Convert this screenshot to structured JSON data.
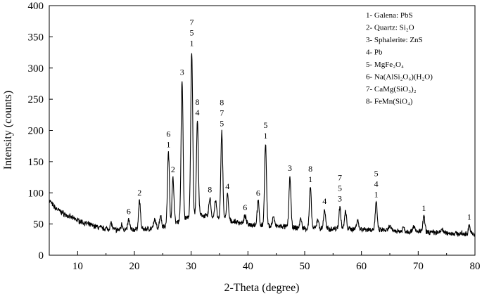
{
  "chart_data": {
    "type": "line",
    "xlabel": "2-Theta (degree)",
    "ylabel": "Intensity (counts)",
    "xlim": [
      5,
      80
    ],
    "ylim": [
      0,
      400
    ],
    "xticks": [
      10,
      20,
      30,
      40,
      50,
      60,
      70,
      80
    ],
    "yticks": [
      0,
      50,
      100,
      150,
      200,
      250,
      300,
      350,
      400
    ],
    "line_color": "#000000",
    "legend_position": "top-right",
    "legend": [
      "1- Galena: PbS",
      "2- Quartz: Si₂O",
      "3- Sphalerite: ZnS",
      "4- Pb",
      "5- MgFe₂O₄",
      "6- Na(AlSi₂O₆)(H₂O)",
      "7- CaMg(SiO₃)₂",
      "8- FeMn(SiO₄)"
    ],
    "baseline": [
      [
        5,
        88
      ],
      [
        6,
        76
      ],
      [
        7,
        70
      ],
      [
        8,
        64
      ],
      [
        10,
        56
      ],
      [
        12,
        49
      ],
      [
        14,
        44
      ],
      [
        16,
        41
      ],
      [
        18,
        40
      ],
      [
        20,
        41
      ],
      [
        22,
        42
      ],
      [
        24,
        44
      ],
      [
        26,
        48
      ],
      [
        28,
        55
      ],
      [
        30,
        63
      ],
      [
        32,
        64
      ],
      [
        34,
        60
      ],
      [
        36,
        57
      ],
      [
        38,
        53
      ],
      [
        40,
        50
      ],
      [
        42,
        48
      ],
      [
        44,
        47
      ],
      [
        46,
        46
      ],
      [
        48,
        44
      ],
      [
        50,
        43
      ],
      [
        52,
        43
      ],
      [
        54,
        42
      ],
      [
        56,
        43
      ],
      [
        58,
        42
      ],
      [
        60,
        42
      ],
      [
        62,
        41
      ],
      [
        64,
        40
      ],
      [
        66,
        39
      ],
      [
        68,
        38
      ],
      [
        70,
        38
      ],
      [
        72,
        37
      ],
      [
        74,
        36
      ],
      [
        76,
        35
      ],
      [
        78,
        34
      ],
      [
        80,
        33
      ]
    ],
    "peaks": [
      {
        "x": 15.9,
        "y": 52,
        "label": []
      },
      {
        "x": 17.8,
        "y": 50,
        "label": []
      },
      {
        "x": 19.0,
        "y": 57,
        "label": [
          "6"
        ]
      },
      {
        "x": 20.9,
        "y": 87,
        "label": [
          "2"
        ]
      },
      {
        "x": 23.6,
        "y": 57,
        "label": []
      },
      {
        "x": 24.6,
        "y": 64,
        "label": []
      },
      {
        "x": 26.0,
        "y": 164,
        "label": [
          "6",
          "1"
        ]
      },
      {
        "x": 26.8,
        "y": 124,
        "label": [
          "2"
        ]
      },
      {
        "x": 28.4,
        "y": 280,
        "label": [
          "3"
        ]
      },
      {
        "x": 30.1,
        "y": 326,
        "label": [
          "7",
          "5",
          "1"
        ]
      },
      {
        "x": 31.1,
        "y": 215,
        "label": [
          "8",
          "4"
        ]
      },
      {
        "x": 33.3,
        "y": 92,
        "label": [
          "8"
        ]
      },
      {
        "x": 34.3,
        "y": 88,
        "label": []
      },
      {
        "x": 35.4,
        "y": 198,
        "label": [
          "8",
          "7",
          "5"
        ]
      },
      {
        "x": 36.4,
        "y": 97,
        "label": [
          "4"
        ]
      },
      {
        "x": 39.5,
        "y": 63,
        "label": [
          "6"
        ]
      },
      {
        "x": 41.8,
        "y": 86,
        "label": [
          "6"
        ]
      },
      {
        "x": 43.1,
        "y": 178,
        "label": [
          "5",
          "1"
        ]
      },
      {
        "x": 44.5,
        "y": 62,
        "label": []
      },
      {
        "x": 47.4,
        "y": 126,
        "label": [
          "3"
        ]
      },
      {
        "x": 49.3,
        "y": 58,
        "label": []
      },
      {
        "x": 51.0,
        "y": 108,
        "label": [
          "8",
          "1"
        ]
      },
      {
        "x": 52.3,
        "y": 58,
        "label": []
      },
      {
        "x": 53.5,
        "y": 73,
        "label": [
          "4"
        ]
      },
      {
        "x": 56.2,
        "y": 77,
        "label": [
          "7",
          "5",
          "3"
        ]
      },
      {
        "x": 57.2,
        "y": 70,
        "label": []
      },
      {
        "x": 59.3,
        "y": 57,
        "label": []
      },
      {
        "x": 62.6,
        "y": 84,
        "label": [
          "5",
          "4",
          "1"
        ]
      },
      {
        "x": 65.0,
        "y": 47,
        "label": []
      },
      {
        "x": 67.4,
        "y": 45,
        "label": []
      },
      {
        "x": 69.2,
        "y": 47,
        "label": []
      },
      {
        "x": 71.0,
        "y": 62,
        "label": [
          "1"
        ]
      },
      {
        "x": 74.2,
        "y": 42,
        "label": []
      },
      {
        "x": 79.0,
        "y": 48,
        "label": [
          "1"
        ]
      }
    ]
  }
}
